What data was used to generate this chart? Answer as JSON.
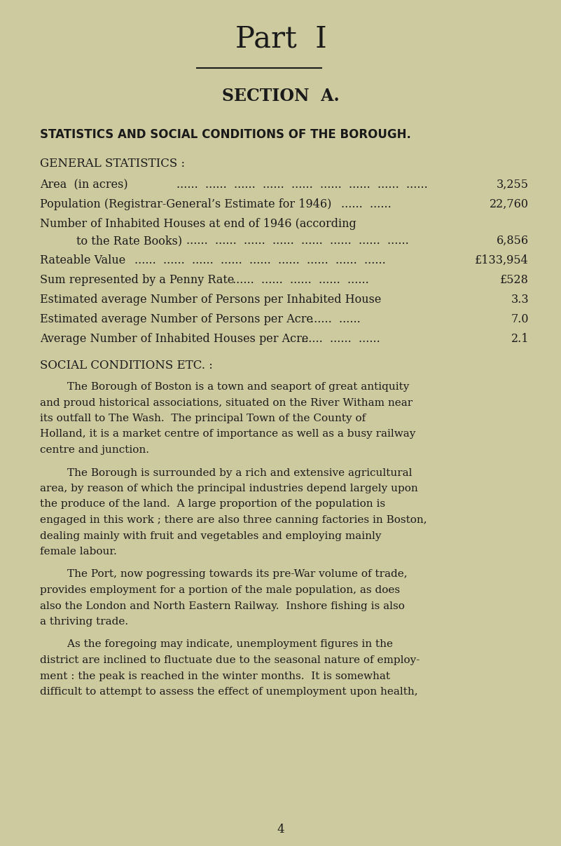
{
  "bg_color": "#ceca9f",
  "text_color": "#1a1a1a",
  "part_title": "Part  I",
  "section_title": "SECTION  A.",
  "section_subtitle": "STATISTICS AND SOCIAL CONDITIONS OF THE BOROUGH.",
  "general_stats_header": "GENERAL STATISTICS :",
  "stats": [
    {
      "label": "Area (in acres)",
      "dots": "...... ...... ...... ...... ...... ...... ...... ...... ......",
      "value": "3,255"
    },
    {
      "label": "Population (Registrar-General’s Estimate for 1946)",
      "dots": "...... ......",
      "value": "22,760"
    },
    {
      "label": "Number of Inhabited Houses at end of 1946 (according",
      "dots": "",
      "value": ""
    },
    {
      "label": "    to the Rate Books)",
      "dots": "...... ...... ...... ...... ...... ...... ...... ......",
      "value": "6,856"
    },
    {
      "label": "Rateable Value",
      "dots": "...... ...... ...... ...... ...... ...... ...... ...... ......",
      "value": "£133,954"
    },
    {
      "label": "Sum represented by a Penny Rate",
      "dots": "...... ...... ...... ...... ......",
      "value": "£528"
    },
    {
      "label": "Estimated average Number of Persons per Inhabited House",
      "dots": "",
      "value": "3.3"
    },
    {
      "label": "Estimated average Number of Persons per Acre",
      "dots": "...... ......",
      "value": "7.0"
    },
    {
      "label": "Average Number of Inhabited Houses per Acre",
      "dots": "...... ...... ......",
      "value": "2.1"
    }
  ],
  "social_conditions_header": "SOCIAL CONDITIONS ETC. :",
  "paragraphs": [
    "        The Borough of Boston is a town and seaport of great antiquity\nand proud historical associations, situated on the River Witham near\nits outfall to The Wash.  The principal Town of the County of\nHolland, it is a market centre of importance as well as a busy railway\ncentre and junction.",
    "        The Borough is surrounded by a rich and extensive agricultural\narea, by reason of which the principal industries depend largely upon\nthe produce of the land.  A large proportion of the population is\nengaged in this work ; there are also three canning factories in Boston,\ndealing mainly with fruit and vegetables and employing mainly\nfemale labour.",
    "        The Port, now pogressing towards its pre-War volume of trade,\nprovides employment for a portion of the male population, as does\nalso the London and North Eastern Railway.  Inshore fishing is also\na thriving trade.",
    "        As the foregoing may indicate, unemployment figures in the\ndistrict are inclined to fluctuate due to the seasonal nature of employ-\nment : the peak is reached in the winter months.  It is somewhat\ndifficult to attempt to assess the effect of unemployment upon health,"
  ],
  "page_number": "4",
  "figsize": [
    8.01,
    12.07
  ],
  "dpi": 100
}
